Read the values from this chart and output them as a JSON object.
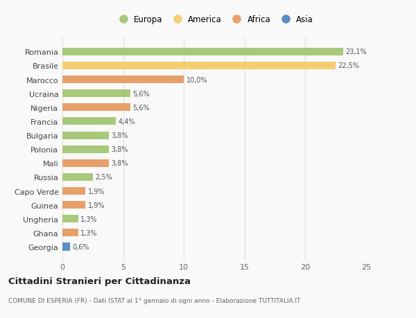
{
  "categories": [
    "Romania",
    "Brasile",
    "Marocco",
    "Ucraina",
    "Nigeria",
    "Francia",
    "Bulgaria",
    "Polonia",
    "Mali",
    "Russia",
    "Capo Verde",
    "Guinea",
    "Ungheria",
    "Ghana",
    "Georgia"
  ],
  "values": [
    23.1,
    22.5,
    10.0,
    5.6,
    5.6,
    4.4,
    3.8,
    3.8,
    3.8,
    2.5,
    1.9,
    1.9,
    1.3,
    1.3,
    0.6
  ],
  "labels": [
    "23,1%",
    "22,5%",
    "10,0%",
    "5,6%",
    "5,6%",
    "4,4%",
    "3,8%",
    "3,8%",
    "3,8%",
    "2,5%",
    "1,9%",
    "1,9%",
    "1,3%",
    "1,3%",
    "0,6%"
  ],
  "bar_colors": [
    "#a8c97a",
    "#f5ce72",
    "#e8a06a",
    "#a8c97a",
    "#e8a06a",
    "#a8c97a",
    "#a8c97a",
    "#a8c97a",
    "#e8a06a",
    "#a8c97a",
    "#e8a06a",
    "#e8a06a",
    "#a8c97a",
    "#e8a06a",
    "#5b8ec4"
  ],
  "title": "Cittadini Stranieri per Cittadinanza",
  "subtitle": "COMUNE DI ESPERIA (FR) - Dati ISTAT al 1° gennaio di ogni anno - Elaborazione TUTTITALIA.IT",
  "xlim": [
    0,
    25
  ],
  "xticks": [
    0,
    5,
    10,
    15,
    20,
    25
  ],
  "background_color": "#f9f9f9",
  "grid_color": "#e0e0e0",
  "legend_labels": [
    "Europa",
    "America",
    "Africa",
    "Asia"
  ],
  "legend_colors": [
    "#a8c97a",
    "#f5ce72",
    "#e8a06a",
    "#5b8ec4"
  ]
}
